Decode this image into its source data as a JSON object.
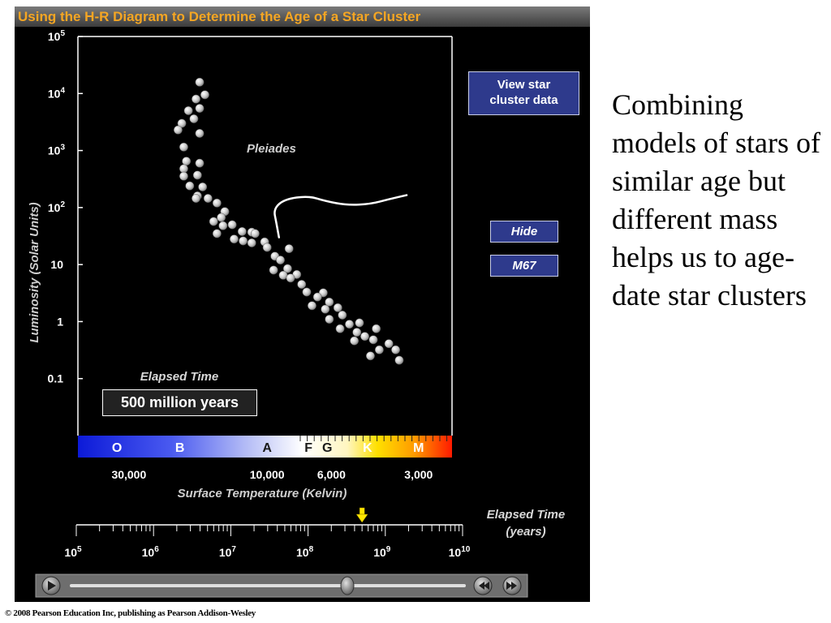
{
  "panel": {
    "title": "Using the H-R Diagram to Determine the Age of a Star Cluster",
    "buttons": {
      "view_data": [
        "View star",
        "cluster data"
      ],
      "hide": "Hide",
      "m67": "M67"
    },
    "elapsed_caption": "Elapsed Time",
    "elapsed_value": "500 million years",
    "timeline_caption": [
      "Elapsed Time",
      "(years)"
    ]
  },
  "side_text": "Combining models of stars of similar age but different mass helps us to age-date star clusters",
  "copyright": "© 2008 Pearson Education Inc, publishing as Pearson Addison-Wesley",
  "colors": {
    "title_text": "#f5a623",
    "button_bg": "#2e3a8c",
    "star_fill": "#c8c8c8",
    "curve": "#ffffff",
    "marker": "#ffe600"
  },
  "icons": {
    "play": "play-icon",
    "rewind": "rewind-icon",
    "fast_forward": "fast-forward-icon",
    "slider_thumb": "slider-thumb-icon",
    "time_marker": "down-arrow-icon"
  },
  "chart_data": {
    "type": "scatter",
    "xlabel": "Surface  Temperature (Kelvin)",
    "ylabel": "Luminosity (Solar Units)",
    "x_scale": "log-reversed",
    "xlim": [
      45000,
      2300
    ],
    "y_scale": "log",
    "ylim": [
      0.01,
      100000
    ],
    "y_ticks": [
      {
        "value": 100000,
        "base": "10",
        "exp": "5"
      },
      {
        "value": 10000,
        "base": "10",
        "exp": "4"
      },
      {
        "value": 1000,
        "base": "10",
        "exp": "3"
      },
      {
        "value": 100,
        "base": "10",
        "exp": "2"
      },
      {
        "value": 10,
        "base": "10",
        "exp": ""
      },
      {
        "value": 1,
        "base": "1",
        "exp": ""
      },
      {
        "value": 0.1,
        "base": "0.1",
        "exp": ""
      }
    ],
    "x_ticks": [
      {
        "value": 30000,
        "label": "30,000"
      },
      {
        "value": 10000,
        "label": "10,000"
      },
      {
        "value": 6000,
        "label": "6,000"
      },
      {
        "value": 3000,
        "label": "3,000"
      }
    ],
    "spectral_classes": [
      {
        "label": "O",
        "temp": 33000
      },
      {
        "label": "B",
        "temp": 20000
      },
      {
        "label": "A",
        "temp": 10000
      },
      {
        "label": "F",
        "temp": 7200
      },
      {
        "label": "G",
        "temp": 6200
      },
      {
        "label": "K",
        "temp": 4500
      },
      {
        "label": "M",
        "temp": 3000
      }
    ],
    "series": [
      {
        "name": "Pleiades",
        "points": [
          [
            17100,
            15800
          ],
          [
            17600,
            8000
          ],
          [
            16400,
            9500
          ],
          [
            18700,
            5000
          ],
          [
            17100,
            5500
          ],
          [
            19700,
            3000
          ],
          [
            17900,
            3600
          ],
          [
            20300,
            2300
          ],
          [
            17100,
            2000
          ],
          [
            19400,
            1150
          ],
          [
            19000,
            650
          ],
          [
            17100,
            600
          ],
          [
            19400,
            480
          ],
          [
            17400,
            370
          ],
          [
            19400,
            355
          ],
          [
            18500,
            240
          ],
          [
            16700,
            230
          ],
          [
            17400,
            160
          ],
          [
            17600,
            145
          ],
          [
            16000,
            145
          ],
          [
            14900,
            120
          ],
          [
            14000,
            85
          ],
          [
            14400,
            67
          ],
          [
            15300,
            57
          ],
          [
            14200,
            48
          ],
          [
            13200,
            50
          ],
          [
            12200,
            38
          ],
          [
            14900,
            35
          ],
          [
            13000,
            28
          ],
          [
            12100,
            26
          ],
          [
            11300,
            37
          ],
          [
            11000,
            35
          ],
          [
            10200,
            25
          ],
          [
            11300,
            24
          ],
          [
            10000,
            20
          ],
          [
            9400,
            14
          ],
          [
            8400,
            19
          ],
          [
            9000,
            12
          ],
          [
            8500,
            8.5
          ],
          [
            9500,
            8.0
          ],
          [
            7900,
            6.7
          ],
          [
            8800,
            6.5
          ],
          [
            8300,
            5.8
          ],
          [
            7600,
            4.5
          ],
          [
            7300,
            3.3
          ],
          [
            6400,
            3.2
          ],
          [
            6700,
            2.7
          ],
          [
            6100,
            2.2
          ],
          [
            7000,
            1.9
          ],
          [
            6300,
            1.65
          ],
          [
            5700,
            1.75
          ],
          [
            6100,
            1.1
          ],
          [
            5500,
            1.3
          ],
          [
            4800,
            0.95
          ],
          [
            5200,
            0.9
          ],
          [
            5600,
            0.75
          ],
          [
            4900,
            0.65
          ],
          [
            4200,
            0.75
          ],
          [
            4600,
            0.55
          ],
          [
            5000,
            0.46
          ],
          [
            4300,
            0.48
          ],
          [
            3800,
            0.41
          ],
          [
            3600,
            0.32
          ],
          [
            4100,
            0.32
          ],
          [
            4400,
            0.25
          ],
          [
            3500,
            0.21
          ]
        ]
      }
    ],
    "turnoff_curve": [
      [
        9100,
        30
      ],
      [
        9300,
        55
      ],
      [
        9500,
        95
      ],
      [
        8700,
        140
      ],
      [
        7200,
        160
      ],
      [
        6300,
        130
      ],
      [
        5300,
        110
      ],
      [
        4400,
        115
      ],
      [
        3800,
        140
      ],
      [
        3300,
        165
      ]
    ],
    "timeline": {
      "scale": "log",
      "range": [
        100000,
        10000000000
      ],
      "ticks": [
        {
          "value": 100000,
          "base": "10",
          "exp": "5"
        },
        {
          "value": 1000000,
          "base": "10",
          "exp": "6"
        },
        {
          "value": 10000000,
          "base": "10",
          "exp": "7"
        },
        {
          "value": 100000000,
          "base": "10",
          "exp": "8"
        },
        {
          "value": 1000000000,
          "base": "10",
          "exp": "9"
        },
        {
          "value": 10000000000,
          "base": "10",
          "exp": "10"
        }
      ],
      "current_value": 500000000
    },
    "grid": false,
    "legend": "none"
  }
}
